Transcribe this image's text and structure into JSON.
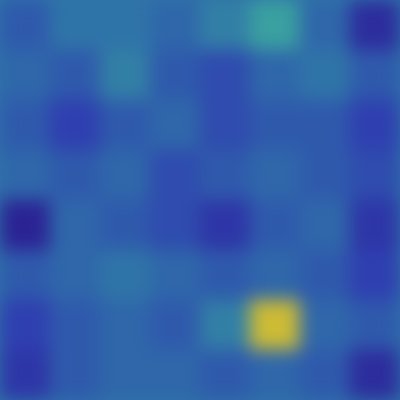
{
  "chart_data": {
    "type": "heatmap",
    "values": [
      [
        0.3,
        0.4,
        0.4,
        0.35,
        0.45,
        0.6,
        0.35,
        0.1
      ],
      [
        0.35,
        0.3,
        0.45,
        0.3,
        0.25,
        0.35,
        0.4,
        0.3
      ],
      [
        0.3,
        0.2,
        0.3,
        0.35,
        0.25,
        0.3,
        0.3,
        0.2
      ],
      [
        0.35,
        0.3,
        0.35,
        0.25,
        0.3,
        0.35,
        0.3,
        0.25
      ],
      [
        0.05,
        0.35,
        0.3,
        0.25,
        0.15,
        0.3,
        0.35,
        0.15
      ],
      [
        0.3,
        0.35,
        0.4,
        0.35,
        0.3,
        0.35,
        0.3,
        0.2
      ],
      [
        0.2,
        0.3,
        0.35,
        0.3,
        0.45,
        0.95,
        0.35,
        0.3
      ],
      [
        0.15,
        0.3,
        0.35,
        0.35,
        0.3,
        0.35,
        0.3,
        0.1
      ]
    ],
    "zlim": [
      0,
      1
    ],
    "tick_labels": false,
    "grid": false
  }
}
